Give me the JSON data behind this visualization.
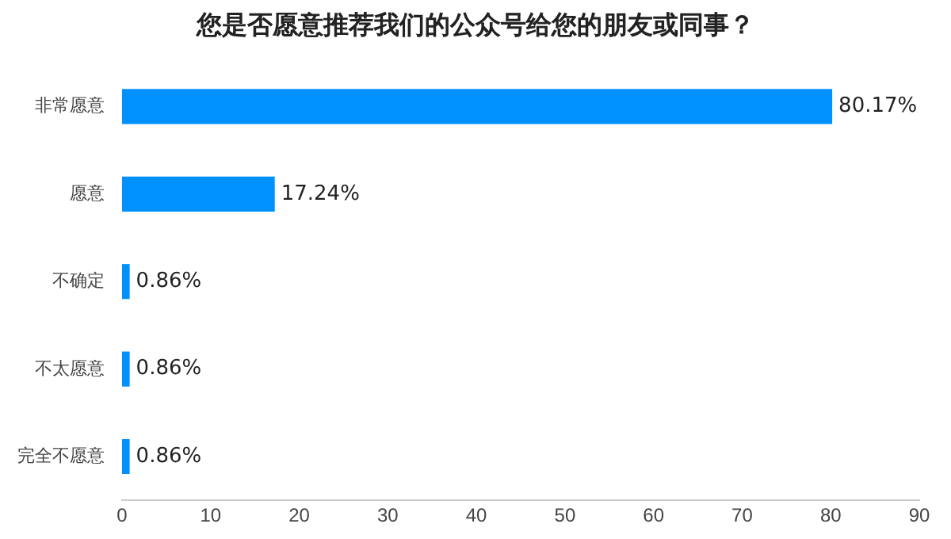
{
  "chart_data": {
    "type": "bar",
    "orientation": "horizontal",
    "title": "您是否愿意推荐我们的公众号给您的朋友或同事？",
    "categories": [
      "非常愿意",
      "愿意",
      "不确定",
      "不太愿意",
      "完全不愿意"
    ],
    "values": [
      80.17,
      17.24,
      0.86,
      0.86,
      0.86
    ],
    "value_labels": [
      "80.17%",
      "17.24%",
      "0.86%",
      "0.86%",
      "0.86%"
    ],
    "color": "#0091ff",
    "xlim": [
      0,
      90
    ],
    "xticks": [
      0,
      10,
      20,
      30,
      40,
      50,
      60,
      70,
      80,
      90
    ],
    "grid": false,
    "legend": false
  }
}
